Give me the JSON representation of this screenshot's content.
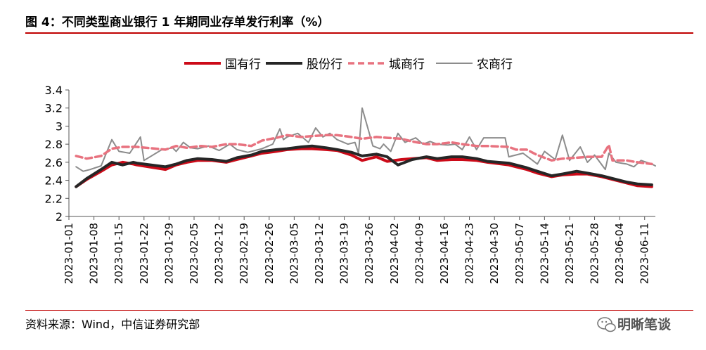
{
  "header": {
    "title": "图 4：不同类型商业银行 1 年期同业存单发行利率（%）"
  },
  "footer": {
    "source": "资料来源：Wind，中信证券研究部"
  },
  "watermark": {
    "text": "明晰笔谈",
    "icon": "wechat-icon"
  },
  "chart_data": {
    "type": "line",
    "title": "",
    "xlabel": "",
    "ylabel": "",
    "ylim": [
      2,
      3.4
    ],
    "yticks": [
      "2",
      "2.2",
      "2.4",
      "2.6",
      "2.8",
      "3",
      "3.2",
      "3.4"
    ],
    "xlim": [
      "2023-01-01",
      "2023-06-14"
    ],
    "xticks": [
      "2023-01-01",
      "2023-01-08",
      "2023-01-15",
      "2023-01-22",
      "2023-01-29",
      "2023-02-05",
      "2023-02-12",
      "2023-02-19",
      "2023-02-26",
      "2023-03-05",
      "2023-03-12",
      "2023-03-19",
      "2023-03-26",
      "2023-04-02",
      "2023-04-09",
      "2023-04-16",
      "2023-04-23",
      "2023-04-30",
      "2023-05-07",
      "2023-05-14",
      "2023-05-21",
      "2023-05-28",
      "2023-06-04",
      "2023-06-11"
    ],
    "grid": false,
    "legend_position": "top",
    "series": [
      {
        "name": "国有行",
        "color": "#cc0a18",
        "style": "solid-thick",
        "x": [
          "2023-01-03",
          "2023-01-06",
          "2023-01-10",
          "2023-01-13",
          "2023-01-16",
          "2023-01-19",
          "2023-01-20",
          "2023-01-28",
          "2023-01-31",
          "2023-02-03",
          "2023-02-06",
          "2023-02-10",
          "2023-02-14",
          "2023-02-17",
          "2023-02-21",
          "2023-02-24",
          "2023-02-28",
          "2023-03-03",
          "2023-03-07",
          "2023-03-10",
          "2023-03-14",
          "2023-03-17",
          "2023-03-21",
          "2023-03-24",
          "2023-03-28",
          "2023-03-31",
          "2023-04-04",
          "2023-04-07",
          "2023-04-11",
          "2023-04-14",
          "2023-04-18",
          "2023-04-21",
          "2023-04-25",
          "2023-04-28",
          "2023-05-04",
          "2023-05-06",
          "2023-05-09",
          "2023-05-12",
          "2023-05-16",
          "2023-05-19",
          "2023-05-23",
          "2023-05-26",
          "2023-05-30",
          "2023-06-02",
          "2023-06-06",
          "2023-06-09",
          "2023-06-13"
        ],
        "values": [
          2.33,
          2.41,
          2.5,
          2.57,
          2.6,
          2.58,
          2.57,
          2.52,
          2.57,
          2.6,
          2.62,
          2.62,
          2.6,
          2.63,
          2.67,
          2.7,
          2.72,
          2.74,
          2.75,
          2.75,
          2.74,
          2.73,
          2.68,
          2.62,
          2.66,
          2.61,
          2.63,
          2.64,
          2.65,
          2.62,
          2.63,
          2.63,
          2.62,
          2.6,
          2.57,
          2.55,
          2.52,
          2.48,
          2.44,
          2.46,
          2.47,
          2.47,
          2.44,
          2.41,
          2.37,
          2.34,
          2.33
        ]
      },
      {
        "name": "股份行",
        "color": "#262626",
        "style": "solid-thick",
        "x": [
          "2023-01-03",
          "2023-01-06",
          "2023-01-10",
          "2023-01-13",
          "2023-01-16",
          "2023-01-19",
          "2023-01-20",
          "2023-01-28",
          "2023-01-31",
          "2023-02-03",
          "2023-02-06",
          "2023-02-10",
          "2023-02-14",
          "2023-02-17",
          "2023-02-21",
          "2023-02-24",
          "2023-02-28",
          "2023-03-03",
          "2023-03-07",
          "2023-03-10",
          "2023-03-14",
          "2023-03-17",
          "2023-03-21",
          "2023-03-24",
          "2023-03-28",
          "2023-03-31",
          "2023-04-03",
          "2023-04-07",
          "2023-04-11",
          "2023-04-14",
          "2023-04-18",
          "2023-04-21",
          "2023-04-25",
          "2023-04-28",
          "2023-05-04",
          "2023-05-06",
          "2023-05-09",
          "2023-05-12",
          "2023-05-16",
          "2023-05-19",
          "2023-05-23",
          "2023-05-26",
          "2023-05-30",
          "2023-06-02",
          "2023-06-06",
          "2023-06-09",
          "2023-06-13"
        ],
        "values": [
          2.33,
          2.42,
          2.52,
          2.6,
          2.57,
          2.6,
          2.59,
          2.55,
          2.58,
          2.62,
          2.64,
          2.63,
          2.61,
          2.65,
          2.68,
          2.72,
          2.74,
          2.75,
          2.77,
          2.78,
          2.76,
          2.74,
          2.71,
          2.67,
          2.69,
          2.66,
          2.57,
          2.63,
          2.66,
          2.64,
          2.66,
          2.66,
          2.64,
          2.61,
          2.59,
          2.57,
          2.54,
          2.5,
          2.45,
          2.47,
          2.5,
          2.48,
          2.45,
          2.42,
          2.38,
          2.36,
          2.35
        ]
      },
      {
        "name": "城商行",
        "color": "#e8727f",
        "style": "dashed",
        "x": [
          "2023-01-03",
          "2023-01-06",
          "2023-01-10",
          "2023-01-13",
          "2023-01-16",
          "2023-01-20",
          "2023-01-28",
          "2023-01-31",
          "2023-02-03",
          "2023-02-07",
          "2023-02-10",
          "2023-02-14",
          "2023-02-17",
          "2023-02-21",
          "2023-02-24",
          "2023-02-28",
          "2023-03-03",
          "2023-03-07",
          "2023-03-10",
          "2023-03-14",
          "2023-03-17",
          "2023-03-21",
          "2023-03-24",
          "2023-03-28",
          "2023-03-31",
          "2023-04-04",
          "2023-04-07",
          "2023-04-11",
          "2023-04-14",
          "2023-04-18",
          "2023-04-21",
          "2023-04-25",
          "2023-04-28",
          "2023-05-04",
          "2023-05-06",
          "2023-05-09",
          "2023-05-12",
          "2023-05-16",
          "2023-05-19",
          "2023-05-23",
          "2023-05-26",
          "2023-05-30",
          "2023-06-01",
          "2023-06-02",
          "2023-06-06",
          "2023-06-09",
          "2023-06-13"
        ],
        "values": [
          2.67,
          2.64,
          2.67,
          2.75,
          2.77,
          2.77,
          2.74,
          2.78,
          2.76,
          2.78,
          2.77,
          2.8,
          2.8,
          2.78,
          2.84,
          2.87,
          2.9,
          2.88,
          2.89,
          2.9,
          2.9,
          2.88,
          2.86,
          2.88,
          2.87,
          2.86,
          2.83,
          2.8,
          2.8,
          2.82,
          2.8,
          2.78,
          2.78,
          2.77,
          2.74,
          2.74,
          2.68,
          2.62,
          2.64,
          2.65,
          2.66,
          2.66,
          2.79,
          2.62,
          2.62,
          2.6,
          2.58
        ]
      },
      {
        "name": "农商行",
        "color": "#8c8c8c",
        "style": "solid-thin",
        "x": [
          "2023-01-03",
          "2023-01-05",
          "2023-01-07",
          "2023-01-10",
          "2023-01-13",
          "2023-01-15",
          "2023-01-18",
          "2023-01-21",
          "2023-01-22",
          "2023-01-27",
          "2023-01-30",
          "2023-01-31",
          "2023-02-02",
          "2023-02-04",
          "2023-02-06",
          "2023-02-09",
          "2023-02-12",
          "2023-02-15",
          "2023-02-17",
          "2023-02-20",
          "2023-02-24",
          "2023-02-27",
          "2023-03-01",
          "2023-03-02",
          "2023-03-03",
          "2023-03-06",
          "2023-03-09",
          "2023-03-11",
          "2023-03-13",
          "2023-03-15",
          "2023-03-17",
          "2023-03-20",
          "2023-03-22",
          "2023-03-23",
          "2023-03-24",
          "2023-03-27",
          "2023-03-29",
          "2023-03-30",
          "2023-04-01",
          "2023-04-03",
          "2023-04-05",
          "2023-04-08",
          "2023-04-10",
          "2023-04-12",
          "2023-04-14",
          "2023-04-17",
          "2023-04-19",
          "2023-04-21",
          "2023-04-23",
          "2023-04-25",
          "2023-04-27",
          "2023-05-03",
          "2023-05-04",
          "2023-05-08",
          "2023-05-10",
          "2023-05-12",
          "2023-05-14",
          "2023-05-17",
          "2023-05-19",
          "2023-05-21",
          "2023-05-24",
          "2023-05-26",
          "2023-05-28",
          "2023-05-31",
          "2023-06-01",
          "2023-06-03",
          "2023-06-06",
          "2023-06-08",
          "2023-06-10",
          "2023-06-13",
          "2023-06-14"
        ],
        "values": [
          2.55,
          2.5,
          2.52,
          2.56,
          2.85,
          2.72,
          2.7,
          2.88,
          2.62,
          2.74,
          2.76,
          2.72,
          2.82,
          2.76,
          2.75,
          2.78,
          2.73,
          2.8,
          2.74,
          2.71,
          2.75,
          2.8,
          2.97,
          2.85,
          2.88,
          2.92,
          2.82,
          2.98,
          2.88,
          2.92,
          2.85,
          2.8,
          2.82,
          2.7,
          3.2,
          2.78,
          2.75,
          2.8,
          2.72,
          2.92,
          2.82,
          2.87,
          2.8,
          2.83,
          2.8,
          2.79,
          2.8,
          2.74,
          2.88,
          2.74,
          2.87,
          2.87,
          2.66,
          2.7,
          2.64,
          2.58,
          2.72,
          2.63,
          2.9,
          2.62,
          2.77,
          2.6,
          2.68,
          2.52,
          2.7,
          2.6,
          2.58,
          2.55,
          2.62,
          2.58,
          2.56
        ]
      }
    ]
  }
}
